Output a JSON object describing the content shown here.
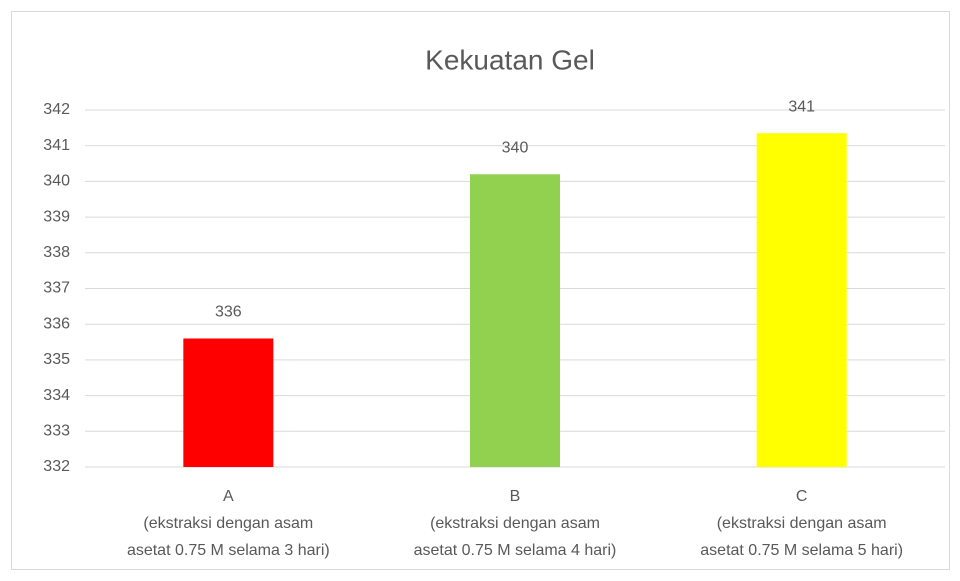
{
  "chart_data": {
    "type": "bar",
    "title": "Kekuatan Gel",
    "categories": [
      "A\n(ekstraksi dengan asam\nasetat 0.75 M selama 3 hari)",
      "B\n(ekstraksi dengan asam\nasetat 0.75 M selama 4 hari)",
      "C\n(ekstraksi dengan asam\nasetat 0.75 M selama 5 hari)"
    ],
    "values": [
      335.6,
      340.2,
      341.35
    ],
    "value_labels": [
      "336",
      "340",
      "341"
    ],
    "colors": [
      "#ff0000",
      "#92d050",
      "#ffff00"
    ],
    "ylim": [
      332,
      342
    ],
    "yticks": [
      332,
      333,
      334,
      335,
      336,
      337,
      338,
      339,
      340,
      341,
      342
    ],
    "grid": true
  }
}
